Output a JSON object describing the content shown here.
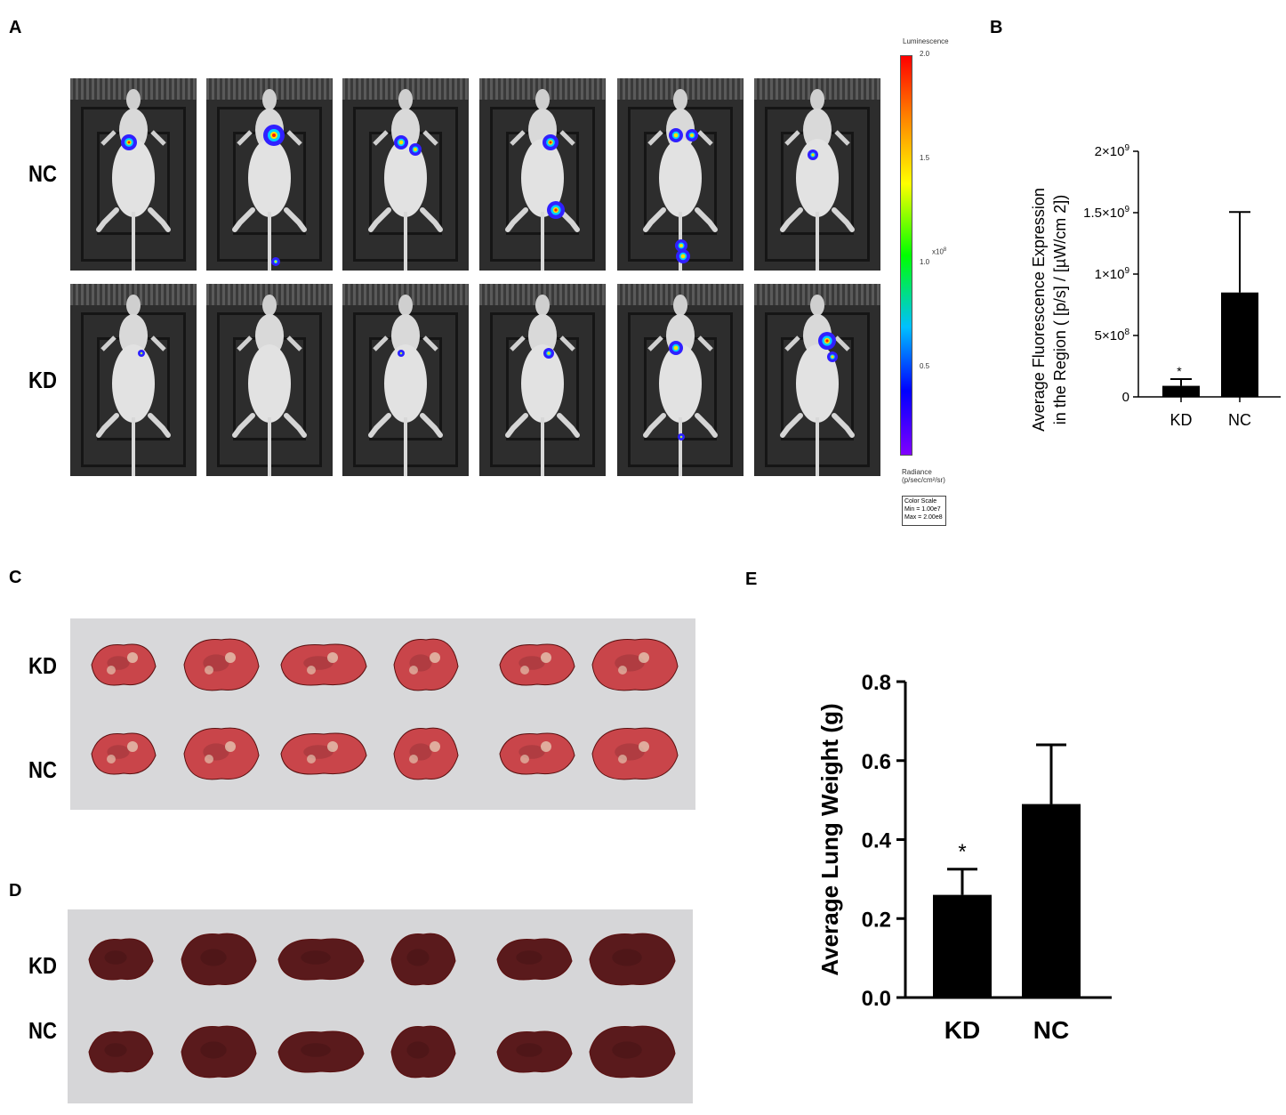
{
  "panels": {
    "a": "A",
    "b": "B",
    "c": "C",
    "d": "D",
    "e": "E"
  },
  "panel_a": {
    "rows": [
      "NC",
      "KD"
    ],
    "colorbar": {
      "title": "Luminescence",
      "ticks": [
        "2.0",
        "1.5",
        "1.0",
        "0.5"
      ],
      "multiplier": "x10",
      "multiplier_exp": "8",
      "radiance_label": "Radiance",
      "radiance_units": "(p/sec/cm²/sr)",
      "scale_title": "Color Scale",
      "scale_min": "Min = 1.00e7",
      "scale_max": "Max = 2.00e8"
    }
  },
  "panel_c": {
    "rows": [
      "KD",
      "NC"
    ]
  },
  "panel_d": {
    "rows": [
      "KD",
      "NC"
    ]
  },
  "chart_data": [
    {
      "type": "bar",
      "categories": [
        "KD",
        "NC"
      ],
      "values": [
        90000000,
        850000000
      ],
      "errors": [
        55000000,
        655000000
      ],
      "significance": [
        "*",
        ""
      ],
      "ylabel_line1": "Average Fluorescence Expression",
      "ylabel_line2": "in the Region ( [p/s] / [µW/cm 2])",
      "ylim": [
        0,
        2000000000
      ],
      "yticks": [
        {
          "value": 0,
          "base": "0",
          "exp": ""
        },
        {
          "value": 500000000,
          "base": "5×10",
          "exp": "8"
        },
        {
          "value": 1000000000,
          "base": "1×10",
          "exp": "9"
        },
        {
          "value": 1500000000,
          "base": "1.5×10",
          "exp": "9"
        },
        {
          "value": 2000000000,
          "base": "2×10",
          "exp": "9"
        }
      ],
      "bar_color": "#000000"
    },
    {
      "type": "bar",
      "categories": [
        "KD",
        "NC"
      ],
      "values": [
        0.26,
        0.49
      ],
      "errors": [
        0.065,
        0.15
      ],
      "significance": [
        "*",
        ""
      ],
      "ylabel": "Average Lung Weight (g)",
      "ylim": [
        0,
        0.8
      ],
      "yticks": [
        "0.0",
        "0.2",
        "0.4",
        "0.6",
        "0.8"
      ],
      "bar_color": "#000000"
    }
  ]
}
